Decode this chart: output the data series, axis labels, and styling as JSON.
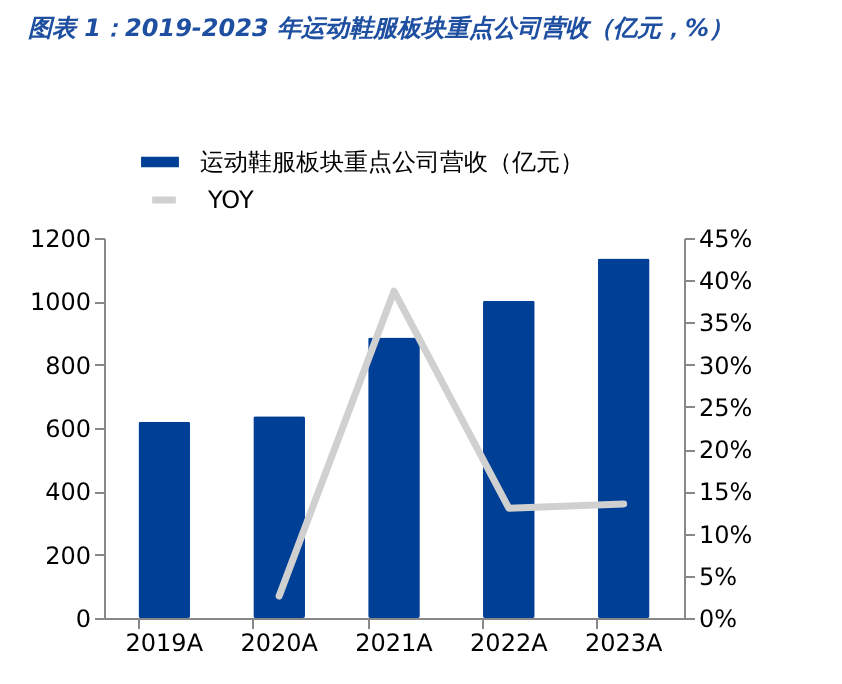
{
  "chart_data": {
    "type": "bar",
    "title": "图表 1：2019-2023 年运动鞋服板块重点公司营收（亿元，%）",
    "categories": [
      "2019A",
      "2020A",
      "2021A",
      "2022A",
      "2023A"
    ],
    "series": [
      {
        "name": "运动鞋服板块重点公司营收（亿元）",
        "color": "#003f96",
        "values": [
          620,
          637,
          886,
          1002,
          1135
        ]
      },
      {
        "name": "YOY",
        "type": "line",
        "axis": "y2",
        "color": "#d0d0d0",
        "values": [
          null,
          2.6,
          38.7,
          13.0,
          13.5
        ]
      }
    ],
    "ylim": [
      0,
      1200
    ],
    "yticks": [
      0,
      200,
      400,
      600,
      800,
      1000,
      1200
    ],
    "y2lim": [
      0,
      45
    ],
    "y2ticks": [
      {
        "value": 0,
        "label": "0%"
      },
      {
        "value": 5,
        "label": "5%"
      },
      {
        "value": 10,
        "label": "10%"
      },
      {
        "value": 15,
        "label": "15%"
      },
      {
        "value": 20,
        "label": "20%"
      },
      {
        "value": 25,
        "label": "25%"
      },
      {
        "value": 30,
        "label": "30%"
      },
      {
        "value": 35,
        "label": "35%"
      },
      {
        "value": 40,
        "label": "40%"
      },
      {
        "value": 45,
        "label": "45%"
      }
    ],
    "grid": false,
    "legend": "top"
  }
}
